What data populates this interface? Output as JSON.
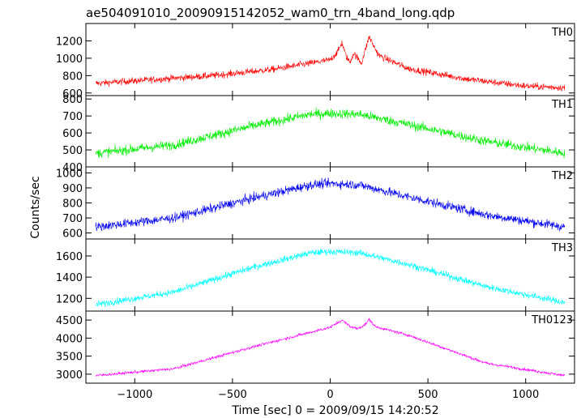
{
  "chart_data": {
    "type": "line",
    "title": "ae504091010_20090915142052_wam0_trn_4band_long.qdp",
    "xlabel": "Time [sec] 0 = 2009/09/15 14:20:52",
    "ylabel": "Counts/sec",
    "xlim": [
      -1250,
      1250
    ],
    "x_range": [
      -1200,
      1200
    ],
    "x_ticks": [
      -1000,
      -500,
      0,
      500,
      1000
    ],
    "x_tick_labels": [
      "−1000",
      "−500",
      "0",
      "500",
      "1000"
    ],
    "panels": [
      {
        "name": "TH0",
        "color": "#ff0000",
        "ylim": [
          570,
          1400
        ],
        "y_ticks": [
          600,
          800,
          1000,
          1200
        ],
        "y_tick_labels": [
          "600",
          "800",
          "1000",
          "1200"
        ],
        "profile_x": [
          -1200,
          -600,
          -300,
          0,
          40,
          60,
          80,
          100,
          120,
          140,
          160,
          180,
          200,
          220,
          250,
          400,
          700,
          1000,
          1200
        ],
        "profile_y": [
          710,
          800,
          870,
          980,
          1080,
          1180,
          1030,
          950,
          1060,
          1000,
          940,
          1100,
          1250,
          1150,
          1030,
          880,
          760,
          680,
          660
        ],
        "noise": 70
      },
      {
        "name": "TH1",
        "color": "#00ee00",
        "ylim": [
          400,
          820
        ],
        "y_ticks": [
          400,
          500,
          600,
          700,
          800
        ],
        "y_tick_labels": [
          "400",
          "500",
          "600",
          "700",
          "800"
        ],
        "profile_x": [
          -1200,
          -800,
          -400,
          -100,
          0,
          150,
          400,
          800,
          1200
        ],
        "profile_y": [
          480,
          530,
          640,
          710,
          715,
          710,
          650,
          550,
          480
        ],
        "noise": 50
      },
      {
        "name": "TH2",
        "color": "#0000ee",
        "ylim": [
          560,
          1040
        ],
        "y_ticks": [
          600,
          700,
          800,
          900,
          1000
        ],
        "y_tick_labels": [
          "600",
          "700",
          "800",
          "900",
          "1000"
        ],
        "profile_x": [
          -1200,
          -800,
          -400,
          -100,
          0,
          150,
          400,
          800,
          1200
        ],
        "profile_y": [
          640,
          700,
          830,
          920,
          930,
          920,
          840,
          720,
          640
        ],
        "noise": 55
      },
      {
        "name": "TH3",
        "color": "#00ffff",
        "ylim": [
          1080,
          1760
        ],
        "y_ticks": [
          1200,
          1400,
          1600
        ],
        "y_tick_labels": [
          "1200",
          "1400",
          "1600"
        ],
        "profile_x": [
          -1200,
          -800,
          -400,
          -100,
          0,
          150,
          400,
          800,
          1200
        ],
        "profile_y": [
          1140,
          1260,
          1490,
          1630,
          1640,
          1630,
          1520,
          1310,
          1160
        ],
        "noise": 55
      },
      {
        "name": "TH0123",
        "color": "#ff00ff",
        "ylim": [
          2750,
          4750
        ],
        "y_ticks": [
          3000,
          3500,
          4000,
          4500
        ],
        "y_tick_labels": [
          "3000",
          "3500",
          "4000",
          "4500"
        ],
        "profile_x": [
          -1200,
          -800,
          -400,
          0,
          60,
          100,
          140,
          180,
          200,
          230,
          400,
          800,
          1200
        ],
        "profile_y": [
          2960,
          3150,
          3750,
          4300,
          4500,
          4330,
          4260,
          4380,
          4520,
          4320,
          4080,
          3300,
          2960
        ],
        "noise": 70
      }
    ]
  }
}
